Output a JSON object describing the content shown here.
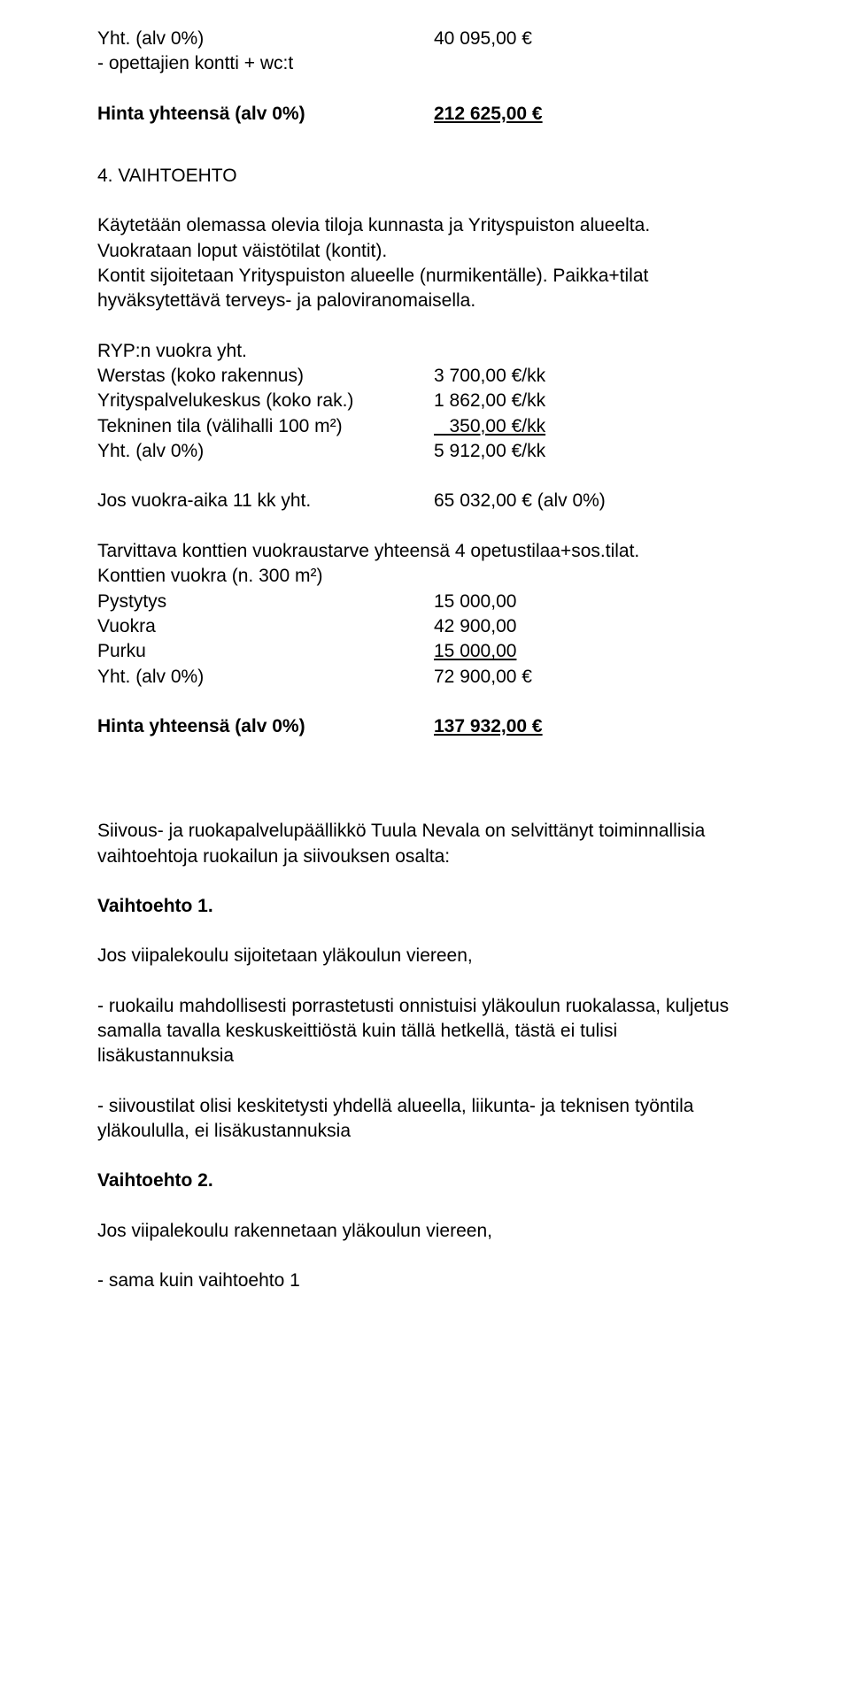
{
  "top": {
    "line1_label": "Yht. (alv 0%)",
    "line1_value": "40 095,00 €",
    "line2": "- opettajien kontti + wc:t"
  },
  "total1": {
    "label": "Hinta yhteensä (alv 0%)",
    "value": "212 625,00 €"
  },
  "section4": {
    "heading": "4. VAIHTOEHTO",
    "p1": "Käytetään olemassa olevia tiloja kunnasta ja Yrityspuiston alueelta.\nVuokrataan loput väistötilat (kontit).\nKontit sijoitetaan Yrityspuiston alueelle (nurmikentälle). Paikka+tilat hyväksytettävä terveys- ja paloviranomaisella.",
    "ryp": "RYP:n vuokra yht.",
    "rows": [
      {
        "label": "Werstas (koko rakennus)",
        "value": "3 700,00 €/kk"
      },
      {
        "label": "Yrityspalvelukeskus (koko rak.)",
        "value": "1 862,00 €/kk"
      },
      {
        "label": "Tekninen tila (välihalli 100 m²)",
        "value": "   350,00 €/kk",
        "underline": true
      },
      {
        "label": "Yht. (alv 0%)",
        "value": "5 912,00 €/kk"
      }
    ],
    "rent11": {
      "label": "Jos vuokra-aika 11 kk yht.",
      "value": "65 032,00 € (alv 0%)"
    },
    "p2a": "Tarvittava konttien vuokraustarve yhteensä 4 opetustilaa+sos.tilat.",
    "p2b": "Konttien vuokra (n. 300 m²)",
    "rows2": [
      {
        "label": "Pystytys",
        "value": "15 000,00"
      },
      {
        "label": "Vuokra",
        "value": "42 900,00"
      },
      {
        "label": "Purku",
        "value": "15 000,00",
        "underline": true
      },
      {
        "label": "Yht. (alv 0%)",
        "value": "72 900,00 €"
      }
    ]
  },
  "total2": {
    "label": "Hinta yhteensä (alv 0%)",
    "value": "137 932,00 €"
  },
  "service": {
    "intro": "Siivous- ja ruokapalvelupäällikkö Tuula Nevala on selvittänyt toiminnallisia vaihtoehtoja ruokailun ja siivouksen osalta:",
    "v1_heading": "Vaihtoehto 1.",
    "v1_line": "Jos viipalekoulu sijoitetaan yläkoulun viereen,",
    "v1_b1": "- ruokailu mahdollisesti porrastetusti  onnistuisi yläkoulun ruokalassa, kuljetus samalla  tavalla keskuskeittiöstä kuin tällä hetkellä, tästä ei tulisi lisäkustannuksia",
    "v1_b2": " - siivoustilat olisi keskitetysti yhdellä alueella, liikunta- ja teknisen työntila yläkoululla, ei lisäkustannuksia",
    "v2_heading": "Vaihtoehto 2.",
    "v2_line": "Jos viipalekoulu rakennetaan yläkoulun viereen,",
    "v2_b1": "- sama kuin vaihtoehto 1"
  }
}
